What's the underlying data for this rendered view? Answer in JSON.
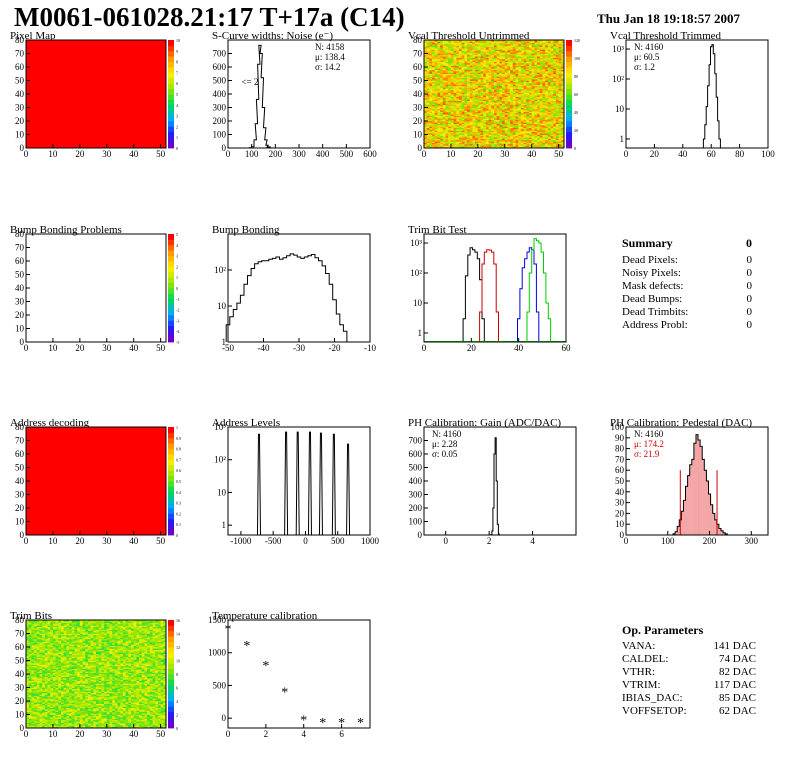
{
  "header": {
    "title": "M0061-061028.21:17 T+17a (C14)",
    "date": "Thu Jan 18 19:18:57 2007"
  },
  "chart_data": [
    {
      "id": "pixel-map",
      "type": "heatmap",
      "title": "Pixel Map",
      "xlim": [
        0,
        52
      ],
      "ylim": [
        0,
        80
      ],
      "xticks": [
        0,
        10,
        20,
        30,
        40,
        50
      ],
      "yticks": [
        0,
        10,
        20,
        30,
        40,
        50,
        60,
        70,
        80
      ],
      "zlim": [
        0,
        10
      ],
      "ztick_labels": [
        "0",
        "1",
        "2",
        "3",
        "4",
        "5",
        "6",
        "7",
        "8",
        "9",
        "10"
      ],
      "fill": "uniform",
      "value": 10,
      "color": "#ff0000"
    },
    {
      "id": "scurve-widths",
      "type": "bar",
      "title": "S-Curve widths: Noise (e⁻)",
      "xlim": [
        0,
        600
      ],
      "ylim": [
        0,
        800
      ],
      "xticks": [
        0,
        100,
        200,
        300,
        400,
        500,
        600
      ],
      "yticks": [
        0,
        100,
        200,
        300,
        400,
        500,
        600,
        700
      ],
      "stats": [
        "N: 4158",
        "μ: 138.4",
        "σ: 14.2"
      ],
      "annotation": "<= 2",
      "x": [
        95,
        105,
        115,
        120,
        125,
        130,
        135,
        140,
        145,
        150,
        155,
        160,
        165,
        170,
        175,
        180
      ],
      "values": [
        2,
        10,
        60,
        180,
        360,
        620,
        760,
        700,
        520,
        300,
        150,
        60,
        20,
        8,
        3,
        1
      ]
    },
    {
      "id": "vcal-untrimmed",
      "type": "heatmap",
      "title": "Vcal Threshold Untrimmed",
      "xlim": [
        0,
        52
      ],
      "ylim": [
        0,
        80
      ],
      "xticks": [
        0,
        10,
        20,
        30,
        40,
        50
      ],
      "yticks": [
        0,
        10,
        20,
        30,
        40,
        50,
        60,
        70,
        80
      ],
      "zlim": [
        0,
        120
      ],
      "ztick_labels": [
        "0",
        "20",
        "40",
        "60",
        "80",
        "100",
        "120"
      ],
      "fill": "noise",
      "value_range": [
        60,
        110
      ]
    },
    {
      "id": "vcal-trimmed",
      "type": "bar",
      "title": "Vcal Threshold Trimmed",
      "scale": "log",
      "xlim": [
        0,
        100
      ],
      "ylim": [
        0.5,
        2000
      ],
      "xticks": [
        0,
        20,
        40,
        60,
        80,
        100
      ],
      "ytick_values": [
        1,
        10,
        100,
        1000
      ],
      "ytick_labels": [
        "1",
        "10",
        "10²",
        "10³"
      ],
      "stats": [
        "N: 4160",
        "μ: 60.5",
        "σ: 1.2"
      ],
      "x": [
        55,
        56,
        57,
        58,
        59,
        60,
        61,
        62,
        63,
        64,
        65,
        66
      ],
      "values": [
        1,
        3,
        12,
        60,
        300,
        1200,
        1400,
        700,
        150,
        25,
        4,
        1
      ]
    },
    {
      "id": "bump-bonding-problems",
      "type": "heatmap",
      "title": "Bump Bonding Problems",
      "xlim": [
        0,
        52
      ],
      "ylim": [
        0,
        80
      ],
      "xticks": [
        0,
        10,
        20,
        30,
        40,
        50
      ],
      "yticks": [
        0,
        10,
        20,
        30,
        40,
        50,
        60,
        70,
        80
      ],
      "zlim": [
        -5,
        5
      ],
      "ztick_labels": [
        "-5",
        "-4",
        "-3",
        "-2",
        "-1",
        "0",
        "1",
        "2",
        "3",
        "4",
        "5"
      ],
      "fill": "empty"
    },
    {
      "id": "bump-bonding",
      "type": "bar",
      "title": "Bump Bonding",
      "scale": "log",
      "xlim": [
        -50,
        -10
      ],
      "ylim": [
        1,
        1000
      ],
      "xticks": [
        -50,
        -40,
        -30,
        -20,
        -10
      ],
      "ytick_values": [
        1,
        10,
        100
      ],
      "ytick_labels": [
        "1",
        "10",
        "10²"
      ],
      "x": [
        -50,
        -49,
        -48,
        -47,
        -46,
        -45,
        -44,
        -43,
        -42,
        -41,
        -40,
        -39,
        -38,
        -37,
        -36,
        -35,
        -34,
        -33,
        -32,
        -31,
        -30,
        -29,
        -28,
        -27,
        -26,
        -25,
        -24,
        -23,
        -22,
        -21,
        -20,
        -19,
        -18,
        -17,
        -16
      ],
      "values": [
        3,
        5,
        8,
        12,
        20,
        40,
        70,
        110,
        150,
        170,
        180,
        180,
        200,
        210,
        230,
        200,
        220,
        250,
        280,
        260,
        230,
        210,
        230,
        250,
        270,
        220,
        180,
        130,
        80,
        40,
        15,
        6,
        3,
        2,
        1
      ]
    },
    {
      "id": "trim-bit-test",
      "type": "line",
      "title": "Trim Bit Test",
      "scale": "log",
      "xlim": [
        0,
        60
      ],
      "ylim": [
        0.5,
        2000
      ],
      "xticks": [
        0,
        20,
        40,
        60
      ],
      "ytick_values": [
        1,
        10,
        100,
        1000
      ],
      "ytick_labels": [
        "1",
        "10",
        "10²",
        "10³"
      ],
      "series": [
        {
          "color": "#000000",
          "x": [
            17,
            18,
            19,
            20,
            21,
            22,
            23,
            24,
            25
          ],
          "values": [
            3,
            80,
            400,
            700,
            600,
            500,
            300,
            60,
            3
          ]
        },
        {
          "color": "#cc0000",
          "x": [
            24,
            25,
            26,
            27,
            28,
            29,
            30,
            31
          ],
          "values": [
            5,
            200,
            500,
            600,
            580,
            500,
            200,
            5
          ]
        },
        {
          "color": "#0000dd",
          "x": [
            40,
            41,
            42,
            43,
            44,
            45,
            46,
            47,
            48
          ],
          "values": [
            3,
            30,
            150,
            300,
            500,
            700,
            600,
            200,
            5
          ]
        },
        {
          "color": "#00cc00",
          "x": [
            44,
            45,
            46,
            47,
            48,
            49,
            50,
            51,
            52,
            53
          ],
          "values": [
            5,
            100,
            600,
            1400,
            1200,
            1000,
            500,
            100,
            10,
            3
          ]
        }
      ]
    },
    {
      "id": "address-decoding",
      "type": "heatmap",
      "title": "Address decoding",
      "xlim": [
        0,
        52
      ],
      "ylim": [
        0,
        80
      ],
      "xticks": [
        0,
        10,
        20,
        30,
        40,
        50
      ],
      "yticks": [
        0,
        10,
        20,
        30,
        40,
        50,
        60,
        70,
        80
      ],
      "zlim": [
        0,
        1
      ],
      "ztick_labels": [
        "0",
        "0.1",
        "0.2",
        "0.3",
        "0.4",
        "0.5",
        "0.6",
        "0.7",
        "0.8",
        "0.9",
        "1"
      ],
      "fill": "uniform",
      "value": 1,
      "color": "#ff0000"
    },
    {
      "id": "address-levels",
      "type": "bar",
      "title": "Address Levels",
      "scale": "log",
      "xlim": [
        -1200,
        1000
      ],
      "ylim": [
        0.5,
        1000
      ],
      "xticks": [
        -1000,
        -500,
        0,
        500,
        1000
      ],
      "ytick_values": [
        1,
        10,
        100,
        1000
      ],
      "ytick_labels": [
        "1",
        "10",
        "10²",
        "10³"
      ],
      "spikes": [
        -720,
        -300,
        -120,
        70,
        240,
        440,
        660
      ],
      "spike_heights": [
        600,
        700,
        700,
        700,
        650,
        600,
        300
      ]
    },
    {
      "id": "ph-gain",
      "type": "bar",
      "title": "PH Calibration: Gain (ADC/DAC)",
      "xlim": [
        -1,
        6
      ],
      "ylim": [
        0,
        800
      ],
      "xticks": [
        0,
        2,
        4
      ],
      "yticks": [
        0,
        100,
        200,
        300,
        400,
        500,
        600,
        700
      ],
      "stats": [
        "N: 4160",
        "μ: 2.28",
        "σ: 0.05"
      ],
      "x": [
        2.1,
        2.15,
        2.2,
        2.25,
        2.3,
        2.35,
        2.4,
        2.45
      ],
      "values": [
        3,
        30,
        200,
        600,
        720,
        400,
        80,
        5
      ]
    },
    {
      "id": "ph-pedestal",
      "type": "bar",
      "title": "PH Calibration: Pedestal (DAC)",
      "xlim": [
        0,
        340
      ],
      "ylim": [
        0,
        100
      ],
      "xticks": [
        0,
        100,
        200,
        300
      ],
      "yticks": [
        0,
        10,
        20,
        30,
        40,
        50,
        60,
        70,
        80,
        90,
        100
      ],
      "stats": [
        "N: 4160",
        "μ: 174.2",
        "σ: 21.9"
      ],
      "stat_colors": [
        "#000000",
        "#cc0000",
        "#cc0000"
      ],
      "cut_lines": [
        130,
        218
      ],
      "x": [
        115,
        120,
        125,
        130,
        135,
        140,
        145,
        150,
        155,
        160,
        165,
        170,
        175,
        180,
        185,
        190,
        195,
        200,
        205,
        210,
        215,
        220,
        225,
        230,
        235,
        240
      ],
      "values": [
        1,
        3,
        8,
        14,
        22,
        32,
        45,
        55,
        65,
        70,
        85,
        93,
        88,
        82,
        70,
        60,
        50,
        38,
        28,
        20,
        14,
        10,
        6,
        4,
        2,
        1
      ]
    },
    {
      "id": "trim-bits",
      "type": "heatmap",
      "title": "Trim Bits",
      "xlim": [
        0,
        52
      ],
      "ylim": [
        0,
        80
      ],
      "xticks": [
        0,
        10,
        20,
        30,
        40,
        50
      ],
      "yticks": [
        0,
        10,
        20,
        30,
        40,
        50,
        60,
        70,
        80
      ],
      "zlim": [
        0,
        16
      ],
      "ztick_labels": [
        "0",
        "2",
        "4",
        "6",
        "8",
        "10",
        "12",
        "14",
        "16"
      ],
      "fill": "noise",
      "value_range": [
        7,
        11
      ]
    },
    {
      "id": "temperature-calibration",
      "type": "scatter",
      "title": "Temperature calibration",
      "xlim": [
        0,
        7.5
      ],
      "ylim": [
        -150,
        1500
      ],
      "xticks": [
        0,
        2,
        4,
        6
      ],
      "yticks": [
        0,
        500,
        1000,
        1500
      ],
      "x": [
        0,
        1,
        2,
        3,
        4,
        5,
        6,
        7
      ],
      "values": [
        1370,
        1120,
        810,
        410,
        -20,
        -60,
        -60,
        -60
      ]
    }
  ],
  "summary": {
    "title": "Summary",
    "total": "0",
    "rows": [
      {
        "label": "Dead Pixels:",
        "value": "0"
      },
      {
        "label": "Noisy Pixels:",
        "value": "0"
      },
      {
        "label": "Mask defects:",
        "value": "0"
      },
      {
        "label": "Dead Bumps:",
        "value": "0"
      },
      {
        "label": "Dead Trimbits:",
        "value": "0"
      },
      {
        "label": "Address Probl:",
        "value": "0"
      }
    ]
  },
  "op_parameters": {
    "title": "Op. Parameters",
    "rows": [
      {
        "label": "VANA:",
        "value": "141 DAC"
      },
      {
        "label": "CALDEL:",
        "value": "74 DAC"
      },
      {
        "label": "VTHR:",
        "value": "82 DAC"
      },
      {
        "label": "VTRIM:",
        "value": "117 DAC"
      },
      {
        "label": "IBIAS_DAC:",
        "value": "85 DAC"
      },
      {
        "label": "VOFFSETOP:",
        "value": "62 DAC"
      }
    ]
  }
}
